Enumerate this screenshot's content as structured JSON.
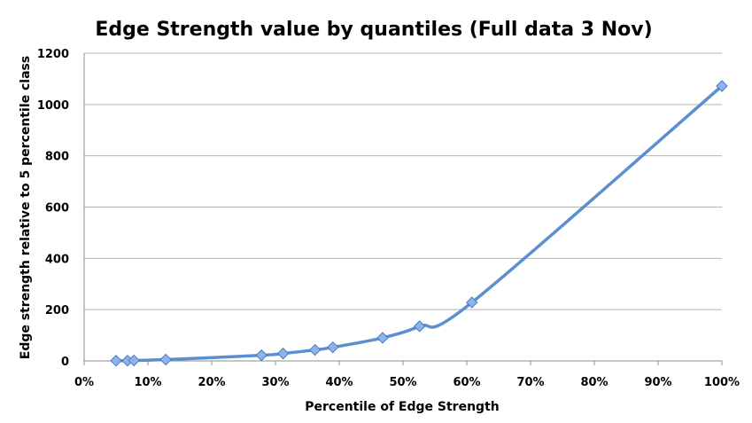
{
  "chart_data": {
    "type": "scatter",
    "title": "Edge Strength value by quantiles (Full data 3 Nov)",
    "xlabel": "Percentile of Edge Strength",
    "ylabel": "Edge strength relative to 5 percentile class",
    "xlim": [
      0,
      100
    ],
    "ylim": [
      0,
      1200
    ],
    "xticks": [
      0,
      10,
      20,
      30,
      40,
      50,
      60,
      70,
      80,
      90,
      100
    ],
    "xtick_labels": [
      "0%",
      "10%",
      "20%",
      "30%",
      "40%",
      "50%",
      "60%",
      "70%",
      "80%",
      "90%",
      "100%"
    ],
    "yticks": [
      0,
      200,
      400,
      600,
      800,
      1000,
      1200
    ],
    "ytick_labels": [
      "0",
      "200",
      "400",
      "600",
      "800",
      "1000",
      "1200"
    ],
    "grid": true,
    "legend": false,
    "series": [
      {
        "color": "#5b8fd0",
        "marker": "diamond",
        "smooth": true,
        "x": [
          5,
          6.8,
          7.8,
          12.8,
          27.8,
          31.2,
          36.2,
          39,
          46.8,
          52.6,
          60.8,
          100
        ],
        "y": [
          1,
          1,
          2,
          5,
          22,
          29,
          43,
          53,
          90,
          135,
          228,
          1072
        ]
      }
    ]
  }
}
